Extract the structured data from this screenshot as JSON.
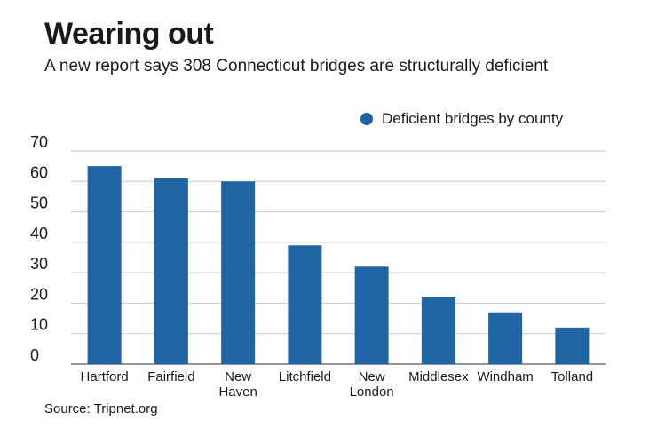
{
  "header": {
    "title": "Wearing out",
    "subtitle": "A new report says 308 Connecticut bridges are structurally deficient"
  },
  "legend": {
    "label": "Deficient bridges by county"
  },
  "source": "Source: Tripnet.org",
  "colors": {
    "bar": "#1f64a3",
    "grid": "#c8c8c8",
    "axis": "#555555"
  },
  "chart_data": {
    "type": "bar",
    "title": "Wearing out",
    "subtitle": "A new report says 308 Connecticut bridges are structurally deficient",
    "categories": [
      [
        "Hartford"
      ],
      [
        "Fairfield"
      ],
      [
        "New",
        "Haven"
      ],
      [
        "Litchfield"
      ],
      [
        "New",
        "London"
      ],
      [
        "Middlesex"
      ],
      [
        "Windham"
      ],
      [
        "Tolland"
      ]
    ],
    "series": [
      {
        "name": "Deficient bridges by county",
        "values": [
          65,
          61,
          60,
          39,
          32,
          22,
          17,
          12
        ]
      }
    ],
    "xlabel": "",
    "ylabel": "",
    "ylim": [
      0,
      70
    ],
    "yticks": [
      0,
      10,
      20,
      30,
      40,
      50,
      60,
      70
    ],
    "grid": true,
    "legend_position": "top-right"
  }
}
